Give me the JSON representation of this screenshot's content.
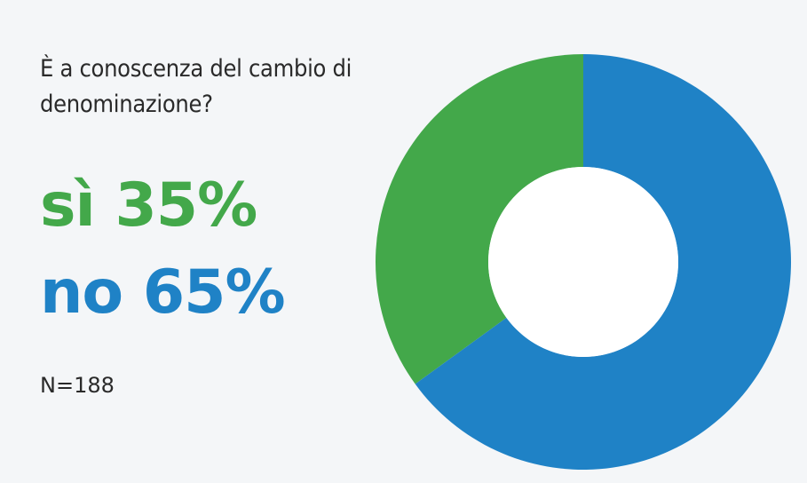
{
  "chart_data": {
    "type": "donut",
    "title": "È a conoscenza del cambio di denominazione?",
    "categories": [
      "sì",
      "no"
    ],
    "values": [
      35,
      65
    ],
    "value_labels": [
      "35%",
      "65%"
    ],
    "colors": [
      "#43a84a",
      "#1f82c6"
    ],
    "note": "N=188"
  }
}
